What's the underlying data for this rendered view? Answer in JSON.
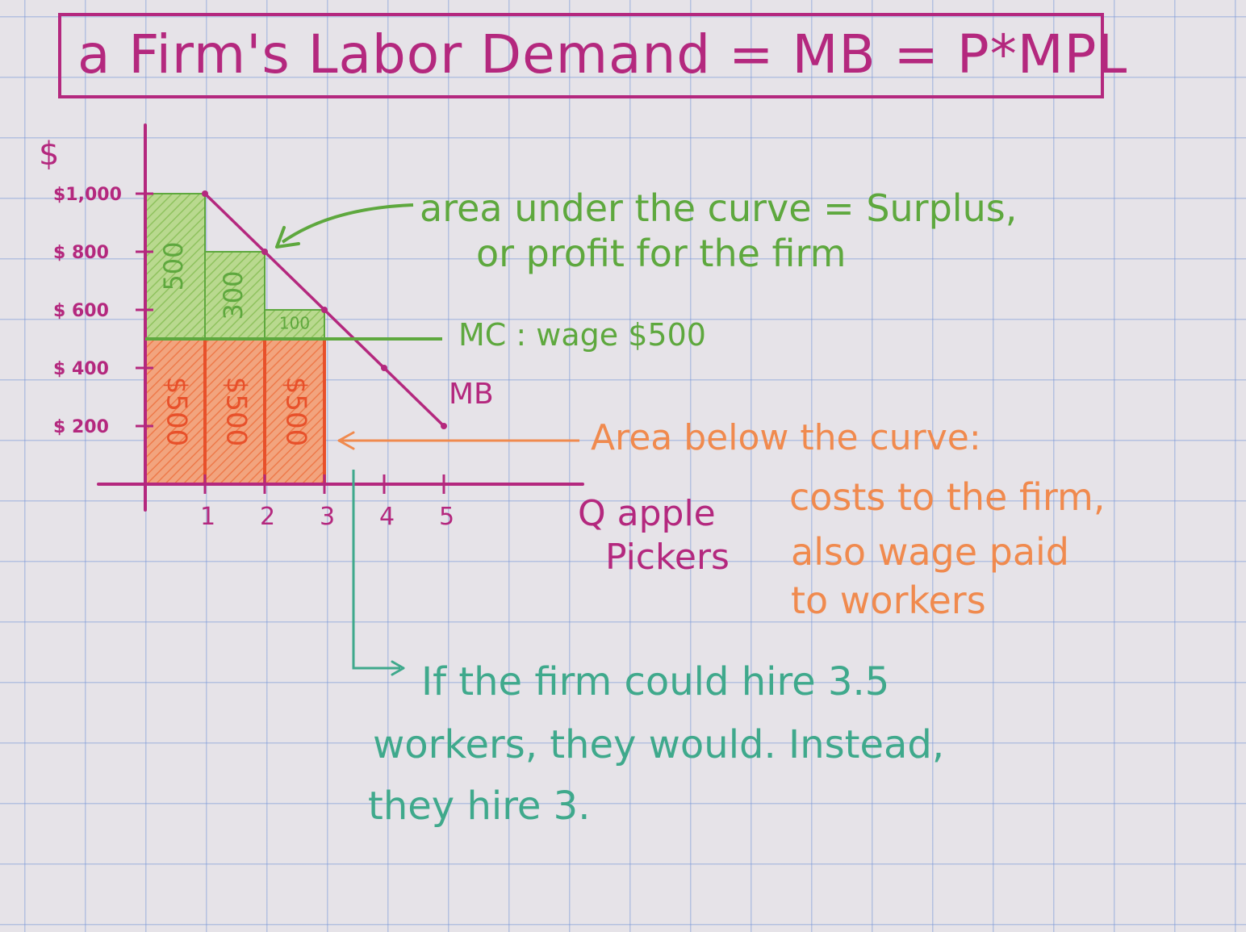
{
  "title": "a Firm's Labor Demand = MB = P*MPL",
  "y_axis_label": "$",
  "x_axis_label_line1": "Q apple",
  "x_axis_label_line2": "Pickers",
  "curve_label": "MB",
  "mc_label": "MC : wage $500",
  "annotations": {
    "surplus_line1": "area under the curve = Surplus,",
    "surplus_line2": "or profit for the firm",
    "cost_line1": "Area below the curve:",
    "cost_line2": "costs to the firm,",
    "cost_line3": "also wage paid",
    "cost_line4": "to workers",
    "hire_line1": "If the firm could hire 3.5",
    "hire_line2": "workers, they would. Instead,",
    "hire_line3": "they hire 3."
  },
  "colors": {
    "ink_magenta": "#b4287e",
    "ink_green": "#5ea83e",
    "ink_orange": "#f08a4e",
    "ink_red_orange": "#e8502a",
    "ink_teal": "#3fa98c"
  },
  "chart_data": {
    "type": "bar",
    "x_ticks": [
      "1",
      "2",
      "3",
      "4",
      "5"
    ],
    "y_ticks": [
      "$1,000",
      "$ 800",
      "$ 600",
      "$ 400",
      "$ 200"
    ],
    "ylim": [
      0,
      1000
    ],
    "xlim": [
      0,
      5
    ],
    "mb_curve": {
      "x": [
        1,
        2,
        3,
        4,
        5
      ],
      "y": [
        1000,
        800,
        600,
        400,
        200
      ]
    },
    "wage": 500,
    "workers": [
      1,
      2,
      3
    ],
    "surplus_labels": [
      "500",
      "300",
      "100"
    ],
    "surplus_values": [
      500,
      300,
      100
    ],
    "cost_labels": [
      "$500",
      "$500",
      "$500"
    ],
    "cost_values": [
      500,
      500,
      500
    ]
  }
}
